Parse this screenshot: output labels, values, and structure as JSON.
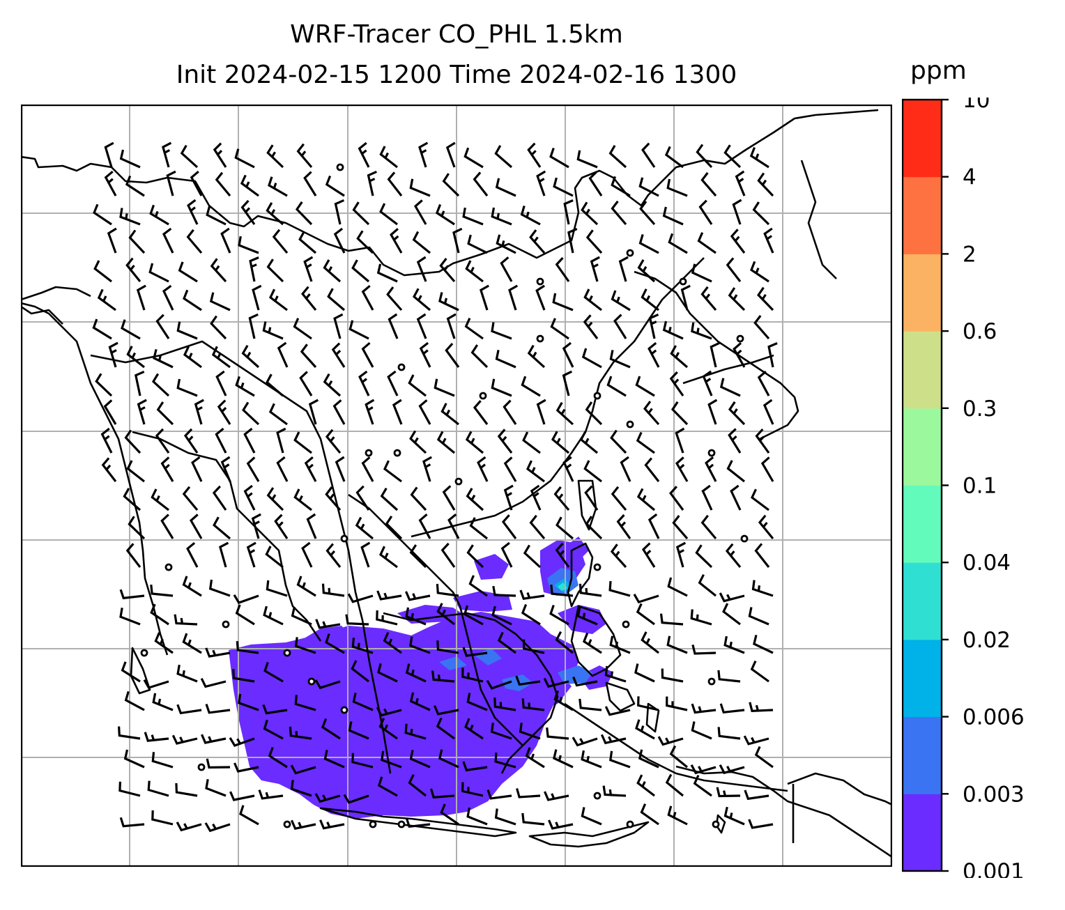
{
  "title": {
    "line1": "WRF-Tracer CO_PHL 1.5km",
    "line2": "Init 2024-02-15 1200 Time 2024-02-16 1300"
  },
  "colorbar": {
    "unit": "ppm",
    "levels": [
      "0.001",
      "0.003",
      "0.006",
      "0.02",
      "0.04",
      "0.1",
      "0.3",
      "0.6",
      "2",
      "4",
      "10"
    ],
    "colors": [
      "#6a2cff",
      "#3a74f2",
      "#00b2e8",
      "#2fe0d2",
      "#62fbbc",
      "#9cf89c",
      "#cde089",
      "#fbb262",
      "#fd7240",
      "#ff2d18"
    ]
  },
  "map": {
    "projection_grid": true,
    "coastline_color": "#000000",
    "gridline_color": "#b0b0b0",
    "tracer_plume": "low-concentration CO tracer (0.001–0.006 ppm) over the Philippines, South China Sea and northern Borneo region",
    "wind_symbols": "wind barbs with calm circles"
  }
}
